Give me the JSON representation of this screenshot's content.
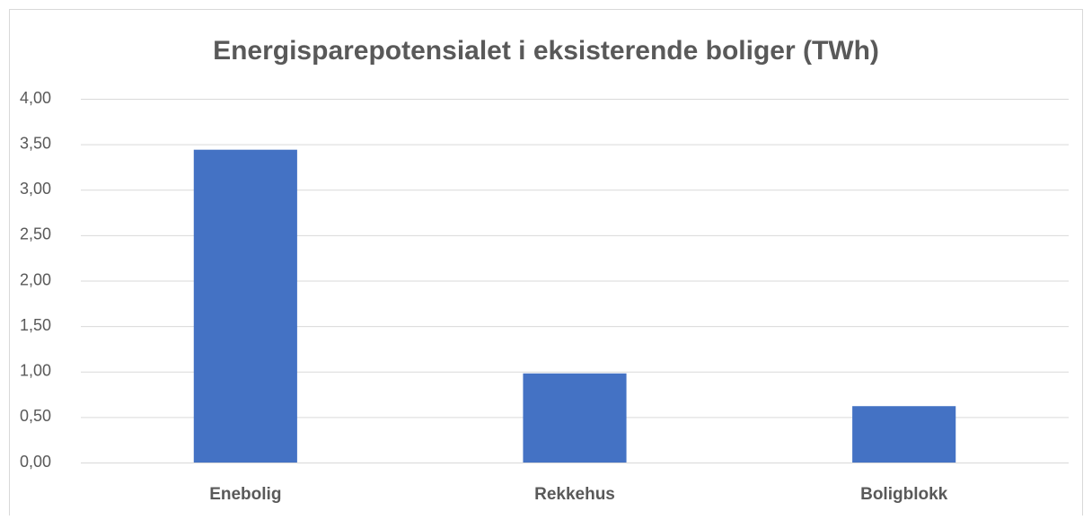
{
  "chart_data": {
    "type": "bar",
    "title": "Energisparepotensialet i eksisterende boliger (TWh)",
    "categories": [
      "Enebolig",
      "Rekkehus",
      "Boligblokk"
    ],
    "values": [
      3.44,
      0.98,
      0.62
    ],
    "color": "#4472c4",
    "ylim": [
      0,
      4
    ],
    "yticks": [
      {
        "value": 0,
        "label": "0,00"
      },
      {
        "value": 0.5,
        "label": "0,50"
      },
      {
        "value": 1,
        "label": "1,00"
      },
      {
        "value": 1.5,
        "label": "1,50"
      },
      {
        "value": 2,
        "label": "2,00"
      },
      {
        "value": 2.5,
        "label": "2,50"
      },
      {
        "value": 3,
        "label": "3,00"
      },
      {
        "value": 3.5,
        "label": "3,50"
      },
      {
        "value": 4,
        "label": "4,00"
      }
    ],
    "grid": true
  }
}
